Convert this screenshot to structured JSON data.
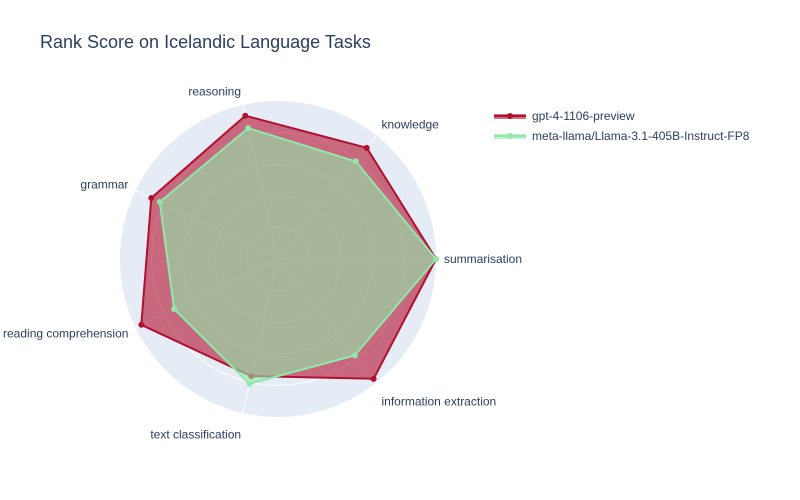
{
  "chart_title": "Rank Score on Icelandic Language Tasks",
  "chart_data": {
    "type": "radar",
    "title": "Rank Score on Icelandic Language Tasks",
    "categories": [
      "summarisation",
      "knowledge",
      "reasoning",
      "grammar",
      "reading comprehension",
      "text classification",
      "information extraction"
    ],
    "range": [
      0,
      1
    ],
    "series": [
      {
        "name": "gpt-4-1106-preview",
        "values": [
          1.0,
          0.9,
          0.93,
          0.89,
          0.96,
          0.76,
          0.97
        ],
        "color": "#b2102f"
      },
      {
        "name": "meta-llama/Llama-3.1-405B-Instruct-FP8",
        "values": [
          1.0,
          0.79,
          0.85,
          0.83,
          0.73,
          0.81,
          0.78
        ],
        "color": "#90e8aa"
      }
    ],
    "legend_position": "top-right",
    "background_color": "#e5ecf6"
  }
}
